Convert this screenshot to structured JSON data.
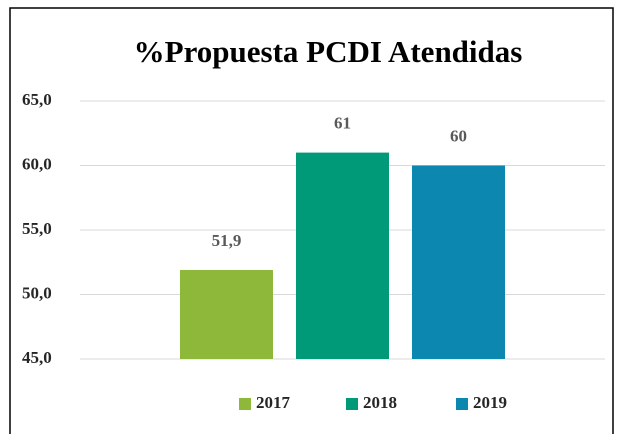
{
  "chart_data": {
    "type": "bar",
    "title": "%Propuesta PCDI Atendidas",
    "categories": [
      null
    ],
    "series": [
      {
        "name": "2017",
        "color": "#8db83a",
        "values": [
          51.9
        ],
        "value_labels": [
          "51,9"
        ]
      },
      {
        "name": "2018",
        "color": "#009a78",
        "values": [
          61
        ]
      },
      {
        "name": "2019",
        "color": "#0b87b0",
        "values": [
          60
        ]
      }
    ],
    "ylim": [
      45,
      65
    ],
    "yticks": [
      {
        "value": 45,
        "label": "45,0"
      },
      {
        "value": 50,
        "label": "50,0"
      },
      {
        "value": 55,
        "label": "55,0"
      },
      {
        "value": 60,
        "label": "60,0"
      },
      {
        "value": 65,
        "label": "65,0"
      }
    ],
    "grid": true,
    "legend": "bottom"
  }
}
